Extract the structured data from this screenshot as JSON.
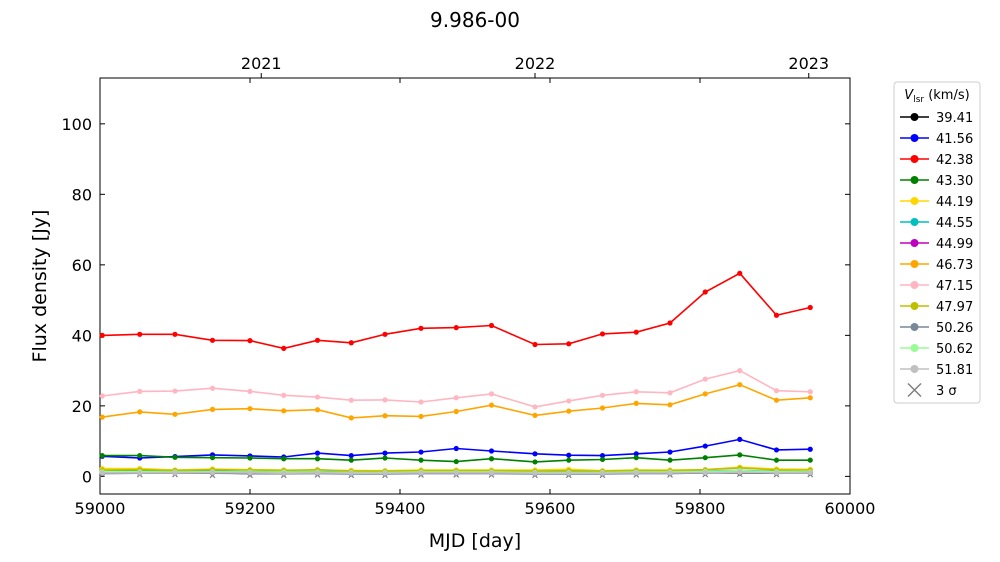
{
  "chart_data": {
    "type": "line",
    "title": "9.986-00",
    "xlabel": "MJD [day]",
    "ylabel": "Flux density [Jy]",
    "xlim": [
      59000,
      60000
    ],
    "ylim": [
      -5,
      113
    ],
    "xticks": [
      59000,
      59200,
      59400,
      59600,
      59800,
      60000
    ],
    "yticks": [
      0,
      20,
      40,
      60,
      80,
      100
    ],
    "top_axis": {
      "ticks": [
        {
          "mjd": 59215,
          "label": "2021"
        },
        {
          "mjd": 59580,
          "label": "2022"
        },
        {
          "mjd": 59945,
          "label": "2023"
        }
      ]
    },
    "grid": false,
    "legend": {
      "placement": "outside-right",
      "title_prefix": "V",
      "title_subscript": "lsr",
      "title_suffix": " (km/s)",
      "sigma_label": "3 σ",
      "sigma_color": "#808080"
    },
    "x": [
      59003,
      59053,
      59100,
      59150,
      59200,
      59245,
      59290,
      59335,
      59380,
      59428,
      59475,
      59522,
      59580,
      59625,
      59670,
      59715,
      59760,
      59807,
      59853,
      59902,
      59947
    ],
    "series": [
      {
        "name": "39.41",
        "color": "#000000",
        "values": [
          1.0,
          1.0,
          1.0,
          1.0,
          0.8,
          0.8,
          0.9,
          0.8,
          0.8,
          0.9,
          0.9,
          0.9,
          0.8,
          0.8,
          0.8,
          0.9,
          0.9,
          1.0,
          1.0,
          0.9,
          0.9
        ]
      },
      {
        "name": "41.56",
        "color": "#0000ff",
        "values": [
          5.7,
          5.2,
          5.6,
          6.1,
          5.8,
          5.5,
          6.6,
          5.9,
          6.6,
          6.9,
          7.9,
          7.2,
          6.4,
          6.0,
          5.9,
          6.4,
          6.9,
          8.6,
          10.5,
          7.5,
          7.7
        ]
      },
      {
        "name": "42.38",
        "color": "#ff0000",
        "values": [
          40.0,
          40.3,
          40.3,
          38.6,
          38.5,
          36.3,
          38.6,
          37.9,
          40.3,
          42.0,
          42.2,
          42.8,
          37.4,
          37.6,
          40.4,
          40.9,
          43.5,
          52.3,
          57.6,
          45.7,
          47.9
        ]
      },
      {
        "name": "43.30",
        "color": "#008000",
        "values": [
          5.9,
          5.9,
          5.4,
          5.3,
          5.2,
          5.0,
          5.0,
          4.6,
          5.2,
          4.6,
          4.2,
          5.0,
          4.1,
          4.6,
          4.8,
          5.3,
          4.6,
          5.3,
          6.1,
          4.6,
          4.6
        ]
      },
      {
        "name": "44.19",
        "color": "#ffd700",
        "values": [
          2.2,
          2.2,
          1.8,
          2.1,
          1.9,
          1.8,
          1.7,
          1.7,
          1.6,
          1.8,
          1.8,
          1.8,
          1.8,
          2.0,
          1.6,
          1.8,
          1.8,
          1.9,
          2.6,
          2.1,
          2.0
        ]
      },
      {
        "name": "44.55",
        "color": "#00bfbf",
        "values": [
          1.4,
          1.5,
          1.4,
          1.5,
          1.3,
          1.3,
          1.3,
          1.3,
          1.2,
          1.3,
          1.4,
          1.3,
          1.3,
          1.3,
          1.2,
          1.3,
          1.3,
          1.5,
          1.7,
          1.4,
          1.3
        ]
      },
      {
        "name": "44.99",
        "color": "#bf00bf",
        "values": [
          1.1,
          1.1,
          1.1,
          1.2,
          1.1,
          1.1,
          1.1,
          1.0,
          1.0,
          1.1,
          1.1,
          1.1,
          1.0,
          1.0,
          1.0,
          1.1,
          1.1,
          1.2,
          1.3,
          1.1,
          1.1
        ]
      },
      {
        "name": "46.73",
        "color": "#ffa500",
        "values": [
          16.8,
          18.3,
          17.6,
          19.0,
          19.2,
          18.6,
          18.9,
          16.6,
          17.2,
          17.0,
          18.4,
          20.2,
          17.3,
          18.5,
          19.4,
          20.7,
          20.3,
          23.4,
          26.0,
          21.6,
          22.3
        ]
      },
      {
        "name": "47.15",
        "color": "#ffb6c1",
        "values": [
          22.8,
          24.1,
          24.2,
          25.0,
          24.1,
          23.0,
          22.5,
          21.6,
          21.7,
          21.1,
          22.3,
          23.4,
          19.7,
          21.4,
          23.0,
          24.0,
          23.7,
          27.6,
          30.0,
          24.3,
          24.0
        ]
      },
      {
        "name": "47.97",
        "color": "#bfbf00",
        "values": [
          1.8,
          1.9,
          1.7,
          1.9,
          1.8,
          1.7,
          1.9,
          1.5,
          1.5,
          1.6,
          1.6,
          1.6,
          1.5,
          1.6,
          1.5,
          1.7,
          1.6,
          1.9,
          2.4,
          1.8,
          1.8
        ]
      },
      {
        "name": "50.26",
        "color": "#778899",
        "values": [
          0.8,
          0.9,
          0.9,
          0.9,
          0.8,
          0.8,
          0.8,
          0.7,
          0.7,
          0.8,
          0.8,
          0.8,
          0.7,
          0.7,
          0.7,
          0.8,
          0.8,
          1.0,
          1.1,
          0.9,
          0.9
        ]
      },
      {
        "name": "50.62",
        "color": "#98fb98",
        "values": [
          1.3,
          1.3,
          1.2,
          1.3,
          1.2,
          1.2,
          1.2,
          1.1,
          1.1,
          1.2,
          1.2,
          1.2,
          1.1,
          1.1,
          1.1,
          1.2,
          1.2,
          1.4,
          1.6,
          1.3,
          1.2
        ]
      },
      {
        "name": "51.81",
        "color": "#c0c0c0",
        "values": [
          1.0,
          1.0,
          1.0,
          1.1,
          1.0,
          0.9,
          1.0,
          0.9,
          0.9,
          1.0,
          1.0,
          1.0,
          0.9,
          0.9,
          0.9,
          1.0,
          1.0,
          1.1,
          1.2,
          1.0,
          1.0
        ]
      }
    ],
    "sigma_markers": {
      "x": [
        59003,
        59053,
        59100,
        59150,
        59200,
        59245,
        59290,
        59335,
        59380,
        59428,
        59475,
        59522,
        59580,
        59625,
        59670,
        59715,
        59760,
        59807,
        59853,
        59902,
        59947
      ],
      "values": [
        0.6,
        0.5,
        0.5,
        0.3,
        0.3,
        0.3,
        0.4,
        0.3,
        0.3,
        0.4,
        0.4,
        0.4,
        0.3,
        0.3,
        0.3,
        0.4,
        0.4,
        0.5,
        0.6,
        0.5,
        0.5
      ]
    }
  }
}
